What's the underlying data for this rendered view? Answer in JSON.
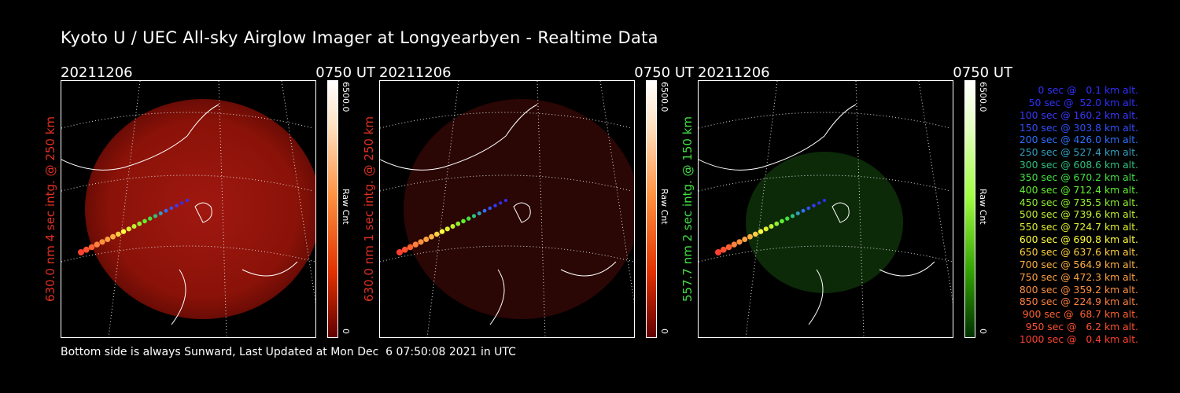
{
  "title": "Kyoto U / UEC All-sky Airglow Imager at Longyearbyen - Realtime Data",
  "footer": "Bottom side is always Sunward, Last Updated at Mon Dec  6 07:50:08 2021 in UTC",
  "colors": {
    "red_label": "#e03020",
    "green_label": "#40e040",
    "white": "#ffffff"
  },
  "panels": [
    {
      "date": "20211206",
      "time": "0750 UT",
      "ylabel": "630.0 nm 4 sec intg. @ 250 km",
      "label_color": "#e03020",
      "cb_max": "6500.0",
      "cb_min": "0",
      "cb_unit": "Raw Cnt",
      "glow": "bright-red"
    },
    {
      "date": "20211206",
      "time": "0750 UT",
      "ylabel": "630.0 nm 1 sec intg. @ 250 km",
      "label_color": "#e03020",
      "cb_max": "6500.0",
      "cb_min": "0",
      "cb_unit": "Raw Cnt",
      "glow": "dark-red"
    },
    {
      "date": "20211206",
      "time": "0750 UT",
      "ylabel": "557.7 nm 2 sec intg. @ 150 km",
      "label_color": "#40e040",
      "cb_max": "6500.0",
      "cb_min": "0",
      "cb_unit": "Raw Cnt",
      "glow": "green"
    }
  ],
  "legend": [
    {
      "text": "0 sec @   0.1 km alt.",
      "color": "#3030ff"
    },
    {
      "text": "50 sec @  52.0 km alt.",
      "color": "#3030ff"
    },
    {
      "text": "100 sec @ 160.2 km alt.",
      "color": "#3838ff"
    },
    {
      "text": "150 sec @ 303.8 km alt.",
      "color": "#3050ff"
    },
    {
      "text": "200 sec @ 426.0 km alt.",
      "color": "#3070ff"
    },
    {
      "text": "250 sec @ 527.4 km alt.",
      "color": "#30a0c0"
    },
    {
      "text": "300 sec @ 608.6 km alt.",
      "color": "#30c080"
    },
    {
      "text": "350 sec @ 670.2 km alt.",
      "color": "#40e040"
    },
    {
      "text": "400 sec @ 712.4 km alt.",
      "color": "#60f030"
    },
    {
      "text": "450 sec @ 735.5 km alt.",
      "color": "#90f030"
    },
    {
      "text": "500 sec @ 739.6 km alt.",
      "color": "#c0f030"
    },
    {
      "text": "550 sec @ 724.7 km alt.",
      "color": "#e0f030"
    },
    {
      "text": "600 sec @ 690.8 km alt.",
      "color": "#ffff40"
    },
    {
      "text": "650 sec @ 637.6 km alt.",
      "color": "#ffd040"
    },
    {
      "text": "700 sec @ 564.9 km alt.",
      "color": "#ffb040"
    },
    {
      "text": "750 sec @ 472.3 km alt.",
      "color": "#ffa040"
    },
    {
      "text": "800 sec @ 359.2 km alt.",
      "color": "#ff9040"
    },
    {
      "text": "850 sec @ 224.9 km alt.",
      "color": "#ff8040"
    },
    {
      "text": "900 sec @  68.7 km alt.",
      "color": "#ff6030"
    },
    {
      "text": "950 sec @   6.2 km alt.",
      "color": "#ff5030"
    },
    {
      "text": "1000 sec @   0.4 km alt.",
      "color": "#ff4030"
    }
  ]
}
